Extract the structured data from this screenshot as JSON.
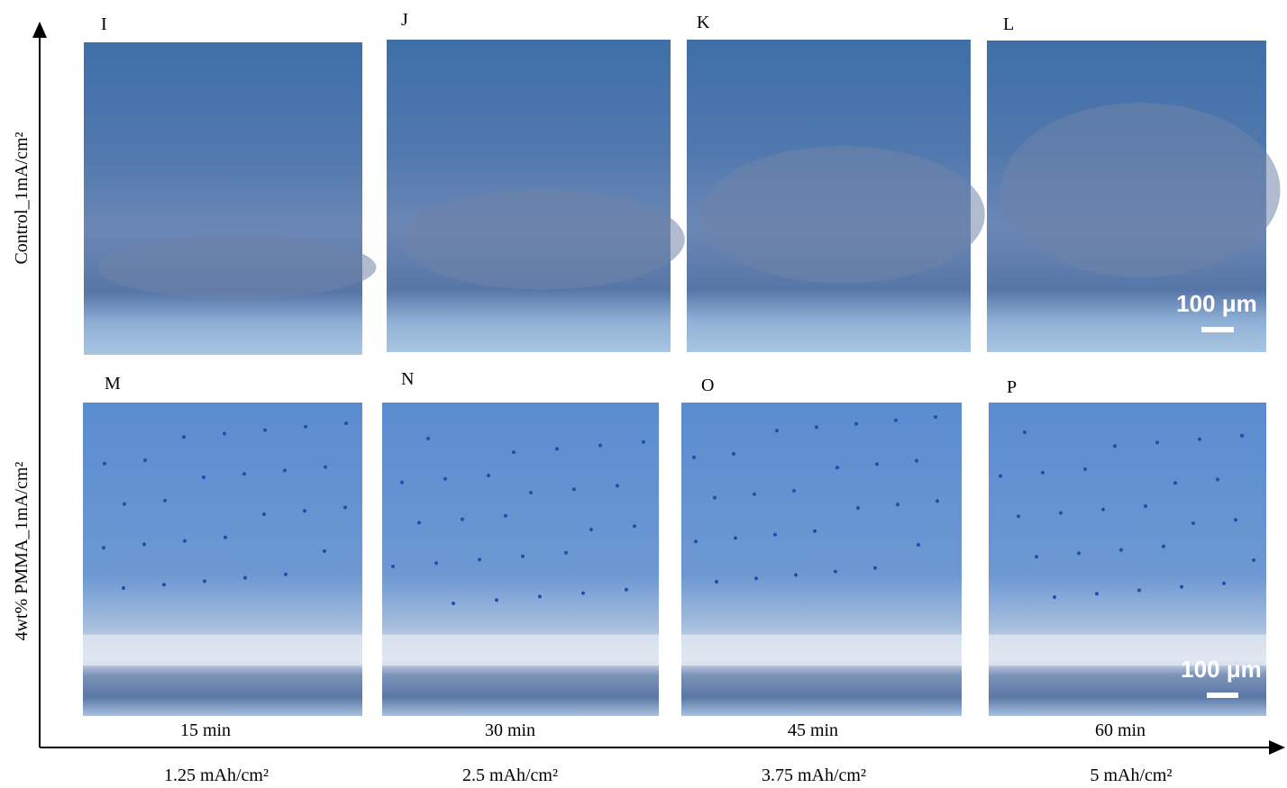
{
  "panels": [
    {
      "label": "I"
    },
    {
      "label": "J"
    },
    {
      "label": "K"
    },
    {
      "label": "L"
    },
    {
      "label": "M"
    },
    {
      "label": "N"
    },
    {
      "label": "O"
    },
    {
      "label": "P"
    }
  ],
  "row_labels": [
    "Control_1mA/cm²",
    "4wt% PMMA_1mA/cm²"
  ],
  "time_labels": [
    "15 min",
    "30 min",
    "45 min",
    "60 min"
  ],
  "capacity_labels": [
    "1.25 mAh/cm²",
    "2.5 mAh/cm²",
    "3.75 mAh/cm²",
    "5 mAh/cm²"
  ],
  "scale_bars": [
    "100 μm",
    "100 μm"
  ]
}
